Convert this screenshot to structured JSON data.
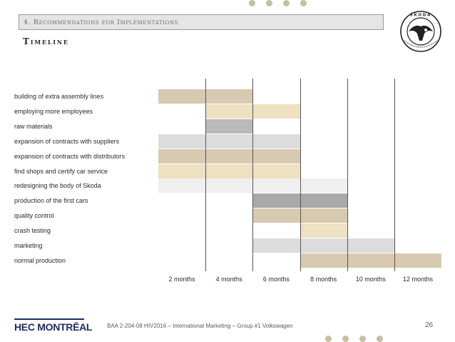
{
  "header": {
    "section_title": "4. Recommendations for Implementations",
    "slide_title": "Timeline"
  },
  "logo": {
    "ring_text": "ŠKODA",
    "name": "skoda-logo"
  },
  "timeline": {
    "periods": [
      "2 months",
      "4 months",
      "6 months",
      "8 months",
      "10 months",
      "12 months"
    ],
    "tasks": [
      {
        "label": "building of extra assembly lines",
        "start": 0,
        "end": 2,
        "color": "#d7cab0"
      },
      {
        "label": "employing more employees",
        "start": 1,
        "end": 3,
        "color": "#ede1c1"
      },
      {
        "label": "raw materials",
        "start": 1,
        "end": 2,
        "color": "#b9b9b9"
      },
      {
        "label": "expansion of contracts with suppliers",
        "start": 0,
        "end": 3,
        "color": "#dcdcdc"
      },
      {
        "label": "expansion of contracts with distributors",
        "start": 0,
        "end": 3,
        "color": "#d7cab0"
      },
      {
        "label": "find shops and certify car service",
        "start": 0,
        "end": 3,
        "color": "#ede1c1"
      },
      {
        "label": "redesigning the body of Skoda",
        "start": 0,
        "end": 4,
        "color": "#efefef"
      },
      {
        "label": "production of the first cars",
        "start": 2,
        "end": 4,
        "color": "#a9a9a9"
      },
      {
        "label": "quality control",
        "start": 2,
        "end": 4,
        "color": "#d7cab0"
      },
      {
        "label": "crash testing",
        "start": 3,
        "end": 4,
        "color": "#ede1c1"
      },
      {
        "label": "marketing",
        "start": 2,
        "end": 5,
        "color": "#dcdcdc"
      },
      {
        "label": "normal production",
        "start": 3,
        "end": 6,
        "color": "#d7cab0"
      }
    ]
  },
  "footer": {
    "brand": "HEC MONTRĒAL",
    "course_text": "BAA 2-204-08 HIV2016 – International Marketing – Group #1 Volkswagen",
    "page_number": "26"
  }
}
